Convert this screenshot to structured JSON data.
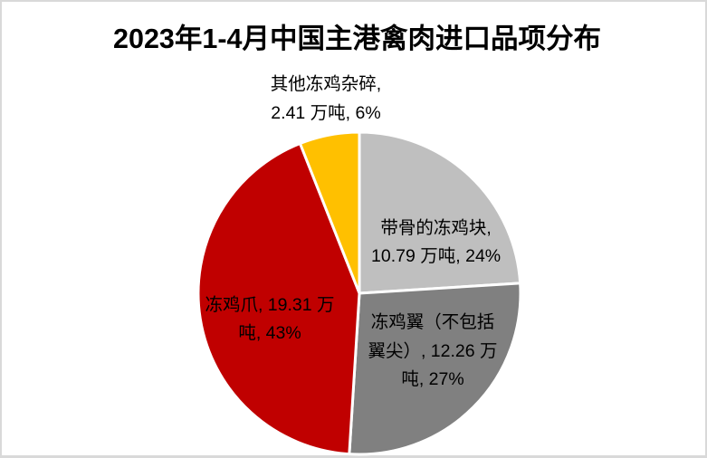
{
  "title": "2023年1-4月中国主港禽肉进口品项分布",
  "chart_data": {
    "type": "pie",
    "title": "2023年1-4月中国主港禽肉进口品项分布",
    "unit": "万吨",
    "start_angle_deg": 0,
    "direction": "clockwise",
    "legend": "none",
    "label_style": "category, value, percent",
    "slices": [
      {
        "name": "带骨的冻鸡块",
        "value": 10.79,
        "percent": 24,
        "color": "#BFBFBF",
        "label": "带骨的冻鸡块,\n10.79 万吨, 24%",
        "label_position": "inside"
      },
      {
        "name": "冻鸡翼（不包括翼尖）",
        "value": 12.26,
        "percent": 27,
        "color": "#808080",
        "label": "冻鸡翼（不包括\n翼尖）, 12.26 万\n吨, 27%",
        "label_position": "inside"
      },
      {
        "name": "冻鸡爪",
        "value": 19.31,
        "percent": 43,
        "color": "#C00000",
        "label": "冻鸡爪, 19.31 万\n吨, 43%",
        "label_position": "inside"
      },
      {
        "name": "其他冻鸡杂碎",
        "value": 2.41,
        "percent": 6,
        "color": "#FFC000",
        "label": "其他冻鸡杂碎,\n2.41 万吨, 6%",
        "label_position": "outside"
      }
    ]
  },
  "colors": {
    "background": "#FFFFFF",
    "frame_border": "#D9D9D9",
    "slice_divider": "#FFFFFF",
    "label_text": "#000000",
    "title_text": "#000000"
  }
}
